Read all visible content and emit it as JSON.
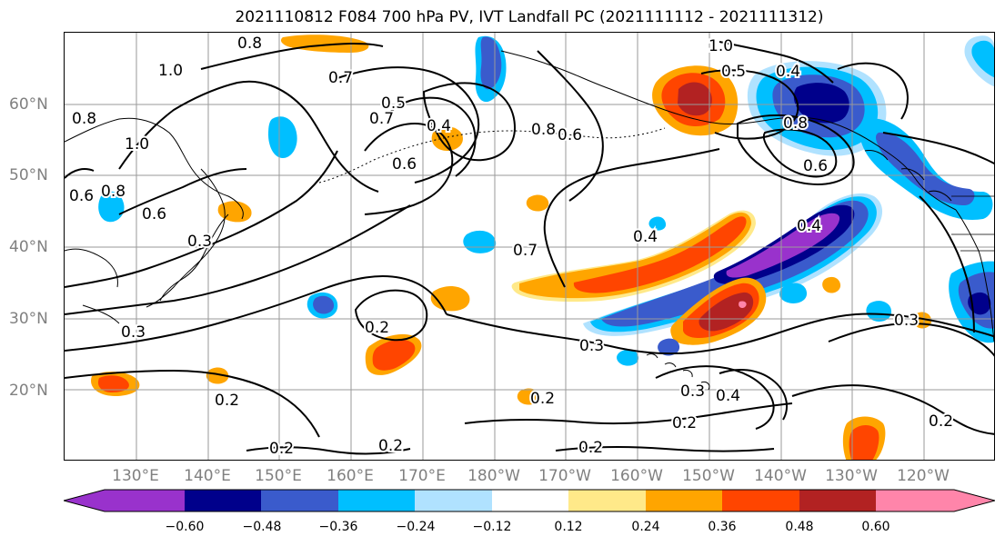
{
  "title": "2021110812 F084 700 hPa PV, IVT Landfall PC (2021111112 - 2021111312)",
  "lat_labels": [
    "60°N",
    "50°N",
    "40°N",
    "30°N",
    "20°N"
  ],
  "lon_labels": [
    "130°E",
    "140°E",
    "150°E",
    "160°E",
    "170°E",
    "180°W",
    "170°W",
    "160°W",
    "150°W",
    "140°W",
    "130°W",
    "120°W"
  ],
  "contour_labels": [
    "0.8",
    "1.0",
    "0.7",
    "0.5",
    "0.4",
    "0.8",
    "0.7",
    "0.6",
    "0.6",
    "0.8",
    "1.0",
    "0.6",
    "1.0",
    "0.6",
    "0.8",
    "0.5",
    "0.4",
    "0.8",
    "0.6",
    "0.4",
    "0.4",
    "0.7",
    "0.3",
    "0.3",
    "0.2",
    "0.3",
    "0.3",
    "0.2",
    "0.2",
    "0.2",
    "0.2",
    "0.2",
    "0.3",
    "0.4",
    "0.2",
    "0.2"
  ],
  "colorbar": {
    "colors": [
      "#9932cc",
      "#00008b",
      "#3a5bcc",
      "#00bfff",
      "#b0e2ff",
      "#ffffff",
      "#ffe989",
      "#ffa500",
      "#ff4500",
      "#b22222",
      "#ff85aa"
    ],
    "tick_labels": [
      "−0.60",
      "−0.48",
      "−0.36",
      "−0.24",
      "−0.12",
      "0.12",
      "0.24",
      "0.36",
      "0.48",
      "0.60"
    ]
  },
  "map": {
    "extent_lon": [
      120,
      250
    ],
    "extent_lat": [
      10,
      70
    ],
    "gridlines": true
  }
}
